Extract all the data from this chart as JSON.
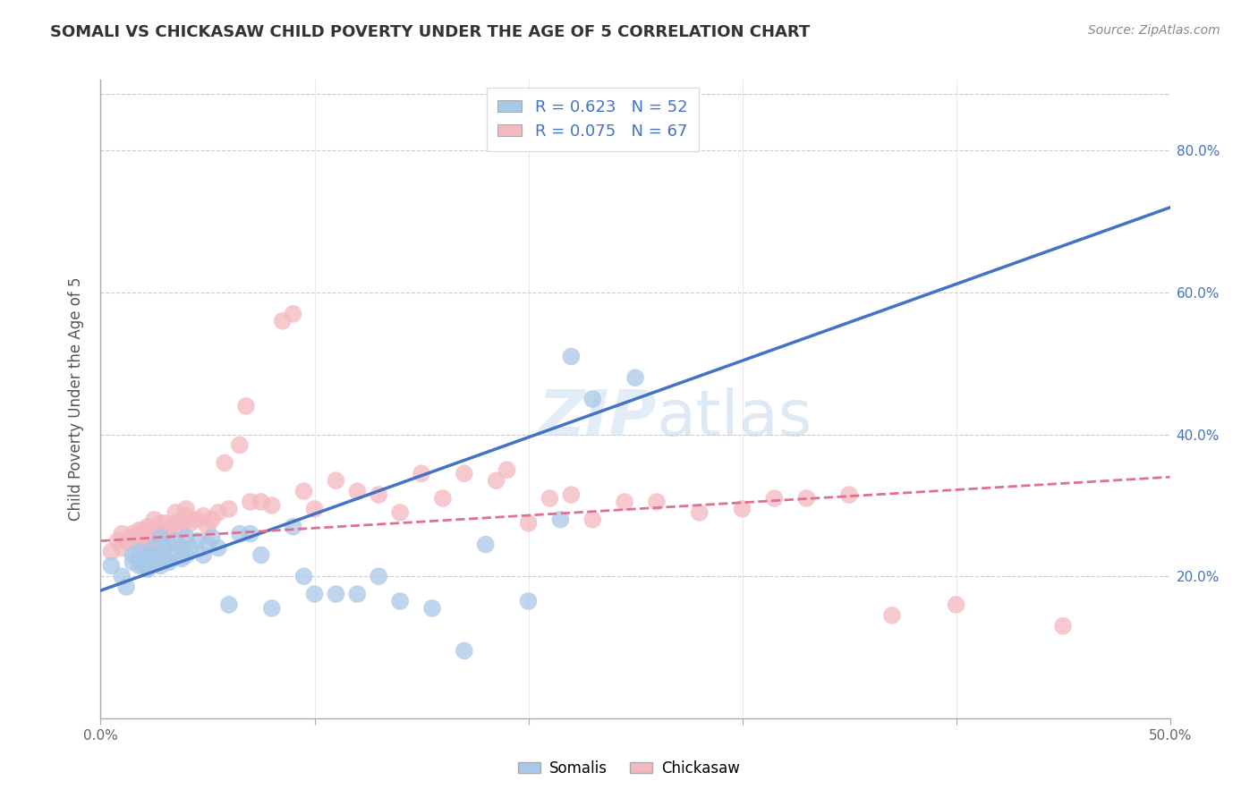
{
  "title": "SOMALI VS CHICKASAW CHILD POVERTY UNDER THE AGE OF 5 CORRELATION CHART",
  "source": "Source: ZipAtlas.com",
  "ylabel": "Child Poverty Under the Age of 5",
  "xlim": [
    0.0,
    0.5
  ],
  "ylim": [
    0.0,
    0.9
  ],
  "xticks": [
    0.0,
    0.1,
    0.2,
    0.3,
    0.4,
    0.5
  ],
  "xtick_labels": [
    "0.0%",
    "",
    "",
    "",
    "",
    "50.0%"
  ],
  "yticks": [
    0.2,
    0.4,
    0.6,
    0.8
  ],
  "ytick_labels": [
    "20.0%",
    "40.0%",
    "60.0%",
    "80.0%"
  ],
  "somali_R": 0.623,
  "somali_N": 52,
  "chickasaw_R": 0.075,
  "chickasaw_N": 67,
  "somali_color": "#a8c8e8",
  "chickasaw_color": "#f4b8c0",
  "somali_line_color": "#4472c4",
  "chickasaw_line_color": "#e07090",
  "background_color": "#ffffff",
  "grid_color": "#cccccc",
  "somali_x": [
    0.005,
    0.01,
    0.012,
    0.015,
    0.015,
    0.018,
    0.018,
    0.02,
    0.02,
    0.022,
    0.022,
    0.025,
    0.025,
    0.025,
    0.028,
    0.028,
    0.03,
    0.03,
    0.032,
    0.032,
    0.035,
    0.035,
    0.038,
    0.038,
    0.04,
    0.04,
    0.042,
    0.045,
    0.048,
    0.05,
    0.052,
    0.055,
    0.06,
    0.065,
    0.07,
    0.075,
    0.08,
    0.09,
    0.095,
    0.1,
    0.11,
    0.12,
    0.13,
    0.14,
    0.155,
    0.17,
    0.18,
    0.2,
    0.215,
    0.22,
    0.23,
    0.25
  ],
  "somali_y": [
    0.215,
    0.2,
    0.185,
    0.22,
    0.23,
    0.215,
    0.235,
    0.215,
    0.225,
    0.21,
    0.23,
    0.22,
    0.23,
    0.24,
    0.215,
    0.255,
    0.225,
    0.24,
    0.22,
    0.245,
    0.23,
    0.25,
    0.225,
    0.24,
    0.23,
    0.255,
    0.24,
    0.25,
    0.23,
    0.245,
    0.255,
    0.24,
    0.16,
    0.26,
    0.26,
    0.23,
    0.155,
    0.27,
    0.2,
    0.175,
    0.175,
    0.175,
    0.2,
    0.165,
    0.155,
    0.095,
    0.245,
    0.165,
    0.28,
    0.51,
    0.45,
    0.48
  ],
  "chickasaw_x": [
    0.005,
    0.008,
    0.01,
    0.01,
    0.012,
    0.015,
    0.015,
    0.018,
    0.018,
    0.02,
    0.02,
    0.022,
    0.022,
    0.025,
    0.025,
    0.025,
    0.028,
    0.028,
    0.03,
    0.03,
    0.032,
    0.035,
    0.035,
    0.038,
    0.038,
    0.04,
    0.04,
    0.042,
    0.045,
    0.048,
    0.05,
    0.052,
    0.055,
    0.058,
    0.06,
    0.065,
    0.068,
    0.07,
    0.075,
    0.08,
    0.085,
    0.09,
    0.095,
    0.1,
    0.11,
    0.12,
    0.13,
    0.14,
    0.15,
    0.16,
    0.17,
    0.185,
    0.19,
    0.2,
    0.21,
    0.22,
    0.23,
    0.245,
    0.26,
    0.28,
    0.3,
    0.315,
    0.33,
    0.35,
    0.37,
    0.4,
    0.45
  ],
  "chickasaw_y": [
    0.235,
    0.25,
    0.24,
    0.26,
    0.25,
    0.255,
    0.26,
    0.248,
    0.265,
    0.25,
    0.265,
    0.255,
    0.27,
    0.25,
    0.265,
    0.28,
    0.26,
    0.275,
    0.26,
    0.275,
    0.265,
    0.275,
    0.29,
    0.265,
    0.28,
    0.285,
    0.295,
    0.275,
    0.28,
    0.285,
    0.27,
    0.28,
    0.29,
    0.36,
    0.295,
    0.385,
    0.44,
    0.305,
    0.305,
    0.3,
    0.56,
    0.57,
    0.32,
    0.295,
    0.335,
    0.32,
    0.315,
    0.29,
    0.345,
    0.31,
    0.345,
    0.335,
    0.35,
    0.275,
    0.31,
    0.315,
    0.28,
    0.305,
    0.305,
    0.29,
    0.295,
    0.31,
    0.31,
    0.315,
    0.145,
    0.16,
    0.13
  ],
  "somali_trendline_x": [
    0.0,
    0.5
  ],
  "somali_trendline_y": [
    0.18,
    0.72
  ],
  "chickasaw_trendline_x": [
    0.0,
    0.5
  ],
  "chickasaw_trendline_y": [
    0.25,
    0.34
  ]
}
